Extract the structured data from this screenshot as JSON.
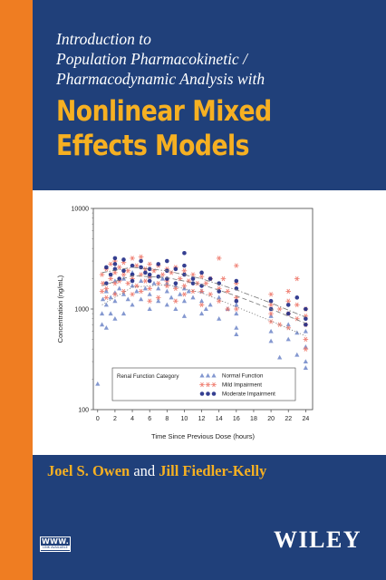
{
  "cover": {
    "subtitle_lines": [
      "Introduction to",
      "Population Pharmacokinetic /",
      "Pharmacodynamic Analysis with"
    ],
    "title_lines": [
      "Nonlinear Mixed",
      "Effects Models"
    ],
    "authors": {
      "first": "Joel S. Owen",
      "conjunction": "and",
      "second": "Jill Fiedler-Kelly"
    },
    "publisher": "WILEY",
    "badge": {
      "top": "WWW.",
      "bottom": "LINK AVAILABLE"
    },
    "colors": {
      "background": "#20407a",
      "spine": "#ef7d22",
      "accent": "#f6b022"
    }
  },
  "chart_data": {
    "type": "scatter",
    "xlabel": "Time Since Previous Dose (hours)",
    "ylabel": "Concentration (ng/mL)",
    "x_ticks": [
      0,
      2,
      4,
      6,
      8,
      10,
      12,
      14,
      16,
      18,
      20,
      22,
      24
    ],
    "y_ticks": [
      100,
      1000,
      10000
    ],
    "y_tick_labels": [
      "100",
      "1000",
      "10000"
    ],
    "xlim": [
      -0.5,
      24.8
    ],
    "ylim": [
      100,
      10000
    ],
    "y_scale": "log",
    "grid": false,
    "legend": {
      "title": "Renal Function Category",
      "placement": "bottom-center",
      "entries": [
        "Normal Function",
        "Mild Impairment",
        "Moderate Impairment"
      ]
    },
    "series": [
      {
        "name": "Normal Function",
        "marker": "triangle",
        "color": "#6f86c8",
        "trend_style": "dotted",
        "trend": [
          [
            0.5,
            1100
          ],
          [
            4,
            1650
          ],
          [
            8,
            1750
          ],
          [
            12,
            1450
          ],
          [
            16,
            1050
          ],
          [
            20,
            760
          ],
          [
            24,
            540
          ]
        ],
        "points": [
          [
            0,
            180
          ],
          [
            0.5,
            700
          ],
          [
            0.5,
            900
          ],
          [
            0.6,
            1250
          ],
          [
            1,
            650
          ],
          [
            1,
            1100
          ],
          [
            1,
            1500
          ],
          [
            1.5,
            1300
          ],
          [
            1.5,
            900
          ],
          [
            2,
            1200
          ],
          [
            2,
            1900
          ],
          [
            2,
            1450
          ],
          [
            2,
            800
          ],
          [
            2.5,
            1600
          ],
          [
            3,
            1400
          ],
          [
            3,
            900
          ],
          [
            3,
            2000
          ],
          [
            3.5,
            1250
          ],
          [
            4,
            1700
          ],
          [
            4,
            1100
          ],
          [
            4,
            2300
          ],
          [
            4.5,
            1500
          ],
          [
            5,
            1900
          ],
          [
            5,
            1250
          ],
          [
            5.5,
            1600
          ],
          [
            6,
            2100
          ],
          [
            6,
            1400
          ],
          [
            6,
            1000
          ],
          [
            6.5,
            1800
          ],
          [
            7,
            1600
          ],
          [
            7,
            1200
          ],
          [
            7.5,
            2000
          ],
          [
            8,
            1500
          ],
          [
            8,
            1100
          ],
          [
            8,
            1800
          ],
          [
            8.5,
            1300
          ],
          [
            9,
            1700
          ],
          [
            9,
            1000
          ],
          [
            9.5,
            1400
          ],
          [
            10,
            1600
          ],
          [
            10,
            1200
          ],
          [
            10,
            850
          ],
          [
            10.5,
            1500
          ],
          [
            11,
            1300
          ],
          [
            12,
            1200
          ],
          [
            12,
            900
          ],
          [
            12,
            1500
          ],
          [
            12.5,
            1000
          ],
          [
            13,
            1100
          ],
          [
            14,
            1300
          ],
          [
            14,
            800
          ],
          [
            15,
            1000
          ],
          [
            16,
            900
          ],
          [
            16,
            650
          ],
          [
            16,
            1100
          ],
          [
            16,
            560
          ],
          [
            20,
            850
          ],
          [
            20,
            600
          ],
          [
            20,
            480
          ],
          [
            21,
            330
          ],
          [
            22,
            700
          ],
          [
            22,
            500
          ],
          [
            23,
            580
          ],
          [
            23,
            350
          ],
          [
            24,
            600
          ],
          [
            24,
            420
          ],
          [
            24,
            300
          ],
          [
            24,
            260
          ]
        ]
      },
      {
        "name": "Mild Impairment",
        "marker": "asterisk",
        "color": "#ee7466",
        "trend_style": "dashed",
        "trend": [
          [
            0.5,
            1700
          ],
          [
            4,
            2150
          ],
          [
            8,
            2050
          ],
          [
            12,
            1750
          ],
          [
            16,
            1350
          ],
          [
            20,
            1000
          ],
          [
            24,
            720
          ]
        ],
        "points": [
          [
            0.5,
            1500
          ],
          [
            0.5,
            2200
          ],
          [
            0.6,
            1800
          ],
          [
            1,
            1300
          ],
          [
            1,
            2500
          ],
          [
            1,
            1600
          ],
          [
            1.5,
            2800
          ],
          [
            1.5,
            2000
          ],
          [
            2,
            1400
          ],
          [
            2,
            2300
          ],
          [
            2,
            3000
          ],
          [
            2,
            1800
          ],
          [
            2.5,
            1900
          ],
          [
            2.5,
            2600
          ],
          [
            3,
            1500
          ],
          [
            3,
            2200
          ],
          [
            3,
            2900
          ],
          [
            3.5,
            1800
          ],
          [
            3.5,
            2400
          ],
          [
            4,
            3200
          ],
          [
            4,
            2000
          ],
          [
            4,
            1400
          ],
          [
            4.5,
            2700
          ],
          [
            4.5,
            1700
          ],
          [
            5,
            2200
          ],
          [
            5,
            3300
          ],
          [
            5,
            1500
          ],
          [
            5.5,
            2500
          ],
          [
            5.5,
            1900
          ],
          [
            6,
            2800
          ],
          [
            6,
            2100
          ],
          [
            6,
            1600
          ],
          [
            6,
            1200
          ],
          [
            6.5,
            2400
          ],
          [
            7,
            2700
          ],
          [
            7,
            1800
          ],
          [
            7,
            1300
          ],
          [
            7.5,
            2200
          ],
          [
            8,
            2500
          ],
          [
            8,
            1700
          ],
          [
            8,
            1900
          ],
          [
            8.5,
            2300
          ],
          [
            9,
            2600
          ],
          [
            9,
            1600
          ],
          [
            9,
            1200
          ],
          [
            9.5,
            2000
          ],
          [
            10,
            2400
          ],
          [
            10,
            1700
          ],
          [
            10,
            1400
          ],
          [
            10.5,
            1900
          ],
          [
            11,
            2200
          ],
          [
            11,
            1500
          ],
          [
            11.5,
            1800
          ],
          [
            12,
            2100
          ],
          [
            12,
            1500
          ],
          [
            12,
            1100
          ],
          [
            12.5,
            1800
          ],
          [
            13,
            1400
          ],
          [
            13,
            2000
          ],
          [
            14,
            3200
          ],
          [
            14,
            1600
          ],
          [
            14,
            1200
          ],
          [
            14.5,
            2000
          ],
          [
            15,
            1500
          ],
          [
            15,
            1000
          ],
          [
            16,
            1800
          ],
          [
            16,
            1300
          ],
          [
            16,
            1000
          ],
          [
            16,
            2700
          ],
          [
            20,
            1100
          ],
          [
            20,
            750
          ],
          [
            20,
            1400
          ],
          [
            20,
            900
          ],
          [
            21,
            1000
          ],
          [
            21,
            700
          ],
          [
            22,
            1200
          ],
          [
            22,
            900
          ],
          [
            22,
            650
          ],
          [
            22,
            1500
          ],
          [
            23,
            2000
          ],
          [
            23,
            1100
          ],
          [
            23,
            800
          ],
          [
            24,
            1000
          ],
          [
            24,
            700
          ],
          [
            24,
            500
          ],
          [
            24,
            400
          ],
          [
            24,
            850
          ]
        ]
      },
      {
        "name": "Moderate Impairment",
        "marker": "circle",
        "color": "#1f2a85",
        "trend_style": "dash-dot",
        "trend": [
          [
            0.5,
            2300
          ],
          [
            4,
            2600
          ],
          [
            8,
            2400
          ],
          [
            12,
            2000
          ],
          [
            16,
            1550
          ],
          [
            20,
            1150
          ],
          [
            24,
            830
          ]
        ],
        "points": [
          [
            1,
            1800
          ],
          [
            1,
            2600
          ],
          [
            1.5,
            2200
          ],
          [
            2,
            3200
          ],
          [
            2,
            2500
          ],
          [
            2,
            2800
          ],
          [
            2.5,
            2000
          ],
          [
            3,
            2400
          ],
          [
            3,
            3100
          ],
          [
            4,
            2700
          ],
          [
            4,
            2200
          ],
          [
            4,
            1900
          ],
          [
            5,
            2600
          ],
          [
            5,
            3000
          ],
          [
            5.5,
            2300
          ],
          [
            6,
            2500
          ],
          [
            6,
            1900
          ],
          [
            6,
            2200
          ],
          [
            7,
            2800
          ],
          [
            7,
            2100
          ],
          [
            8,
            2400
          ],
          [
            8,
            3000
          ],
          [
            8,
            2000
          ],
          [
            9,
            2500
          ],
          [
            9,
            1800
          ],
          [
            10,
            3600
          ],
          [
            10,
            2200
          ],
          [
            10,
            2700
          ],
          [
            11,
            2000
          ],
          [
            11,
            1800
          ],
          [
            12,
            2300
          ],
          [
            12,
            1700
          ],
          [
            13,
            2000
          ],
          [
            14,
            1800
          ],
          [
            14,
            1500
          ],
          [
            16,
            1600
          ],
          [
            16,
            1200
          ],
          [
            16,
            1900
          ],
          [
            20,
            1200
          ],
          [
            20,
            1000
          ],
          [
            22,
            1100
          ],
          [
            22,
            900
          ],
          [
            23,
            1300
          ],
          [
            24,
            1000
          ],
          [
            24,
            800
          ],
          [
            24,
            700
          ]
        ]
      }
    ]
  }
}
